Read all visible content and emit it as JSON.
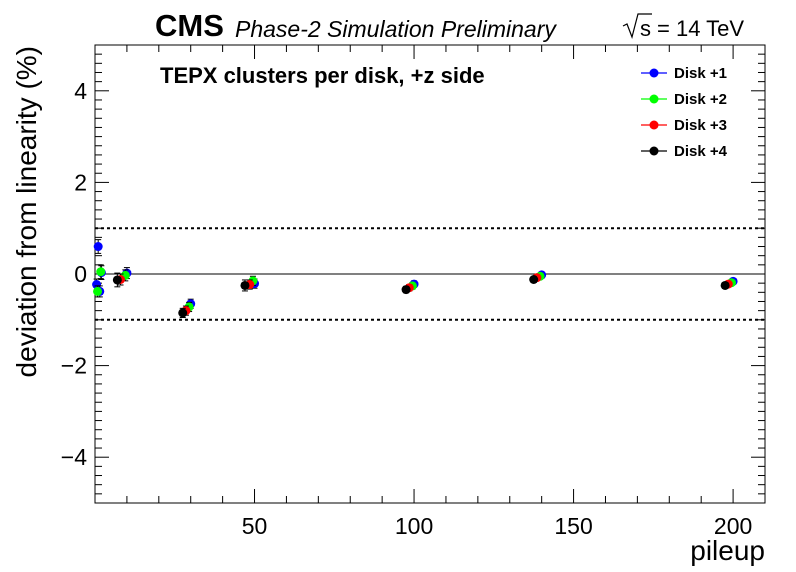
{
  "header": {
    "experiment": "CMS",
    "subtitle": "Phase-2 Simulation Preliminary",
    "energy_symbol": "s",
    "energy_text": "= 14 TeV"
  },
  "chart_data": {
    "type": "scatter",
    "title": "TEPX clusters per disk, +z side",
    "xlabel": "pileup",
    "ylabel": "deviation from linearity (%)",
    "xlim": [
      0,
      210
    ],
    "ylim": [
      -5,
      5
    ],
    "x_ticks": [
      50,
      100,
      150,
      200
    ],
    "y_ticks": [
      -4,
      -2,
      0,
      2,
      4
    ],
    "x_tick_labels": [
      "50",
      "100",
      "150",
      "200"
    ],
    "y_tick_labels": [
      "−4",
      "−2",
      "0",
      "2",
      "4"
    ],
    "reference_lines": [
      {
        "y": 0,
        "style": "solid"
      },
      {
        "y": 1,
        "style": "dotted"
      },
      {
        "y": -1,
        "style": "dotted"
      }
    ],
    "grid": false,
    "legend_position": "top-right",
    "series": [
      {
        "name": "Disk +1",
        "color": "#0000ff",
        "points": [
          {
            "x": 0.5,
            "y": -0.23,
            "err": 0.12
          },
          {
            "x": 1,
            "y": 0.6,
            "err": 0.15
          },
          {
            "x": 1.5,
            "y": -0.38,
            "err": 0.12
          },
          {
            "x": 2,
            "y": 0.03,
            "err": 0.15
          },
          {
            "x": 10,
            "y": 0.02,
            "err": 0.12
          },
          {
            "x": 30,
            "y": -0.65,
            "err": 0.1
          },
          {
            "x": 50,
            "y": -0.21,
            "err": 0.1
          },
          {
            "x": 100,
            "y": -0.22,
            "err": 0.07
          },
          {
            "x": 140,
            "y": -0.02,
            "err": 0.06
          },
          {
            "x": 200,
            "y": -0.16,
            "err": 0.06
          }
        ]
      },
      {
        "name": "Disk +2",
        "color": "#00ff00",
        "points": [
          {
            "x": 0.8,
            "y": -0.38,
            "err": 0.12
          },
          {
            "x": 1.8,
            "y": 0.05,
            "err": 0.15
          },
          {
            "x": 9.5,
            "y": -0.03,
            "err": 0.12
          },
          {
            "x": 29.5,
            "y": -0.72,
            "err": 0.1
          },
          {
            "x": 49.5,
            "y": -0.15,
            "err": 0.1
          },
          {
            "x": 99.5,
            "y": -0.26,
            "err": 0.07
          },
          {
            "x": 139.5,
            "y": -0.05,
            "err": 0.06
          },
          {
            "x": 199.5,
            "y": -0.19,
            "err": 0.06
          }
        ]
      },
      {
        "name": "Disk +3",
        "color": "#ff0000",
        "points": [
          {
            "x": 8,
            "y": -0.12,
            "err": 0.12
          },
          {
            "x": 28.5,
            "y": -0.8,
            "err": 0.1
          },
          {
            "x": 48.5,
            "y": -0.23,
            "err": 0.1
          },
          {
            "x": 98.5,
            "y": -0.3,
            "err": 0.07
          },
          {
            "x": 138.5,
            "y": -0.08,
            "err": 0.06
          },
          {
            "x": 198.5,
            "y": -0.22,
            "err": 0.06
          }
        ]
      },
      {
        "name": "Disk +4",
        "color": "#000000",
        "points": [
          {
            "x": 7,
            "y": -0.13,
            "err": 0.15
          },
          {
            "x": 27.5,
            "y": -0.85,
            "err": 0.1
          },
          {
            "x": 47,
            "y": -0.25,
            "err": 0.12
          },
          {
            "x": 97.5,
            "y": -0.34,
            "err": 0.07
          },
          {
            "x": 137.5,
            "y": -0.12,
            "err": 0.06
          },
          {
            "x": 197.5,
            "y": -0.25,
            "err": 0.06
          }
        ]
      }
    ]
  }
}
